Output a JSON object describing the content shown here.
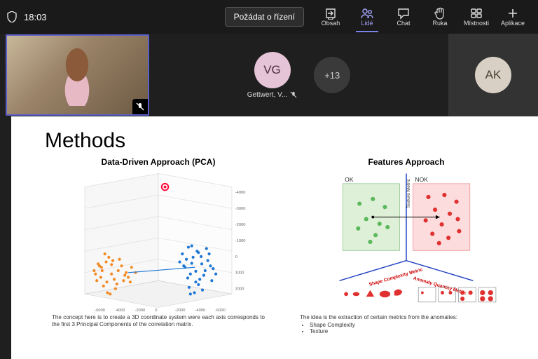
{
  "topbar": {
    "time": "18:03",
    "present_label": "Požádat o řízení",
    "items": [
      {
        "label": "Obsah",
        "icon": "share"
      },
      {
        "label": "Lidé",
        "icon": "people",
        "active": true
      },
      {
        "label": "Chat",
        "icon": "chat"
      },
      {
        "label": "Ruka",
        "icon": "hand"
      },
      {
        "label": "Místnosti",
        "icon": "rooms"
      },
      {
        "label": "Aplikace",
        "icon": "plus"
      }
    ]
  },
  "participants": {
    "main_speaking": true,
    "center": {
      "initials": "VG",
      "name": "Gettwert, V...",
      "muted": true,
      "bg": "#e6c4d8"
    },
    "overflow": {
      "label": "+13"
    },
    "right": {
      "initials": "AK",
      "bg": "#d8d0c4"
    }
  },
  "slide": {
    "title": "Methods",
    "left": {
      "heading": "Data-Driven Approach (PCA)",
      "caption": "The concept here is to create a 3D coordinate system were each axis corresponds to the first 3 Principal Components of the correlation matrix.",
      "chart": {
        "type": "scatter3d",
        "cluster_a_color": "#f28c28",
        "cluster_b_color": "#1f77d4",
        "axis_color": "#888",
        "grid_color": "#ccc",
        "pointer_color": "#ff0033",
        "x_ticks": [
          "-6000",
          "-4000",
          "-2000",
          "0",
          "-2000",
          "-4000",
          "-6000"
        ],
        "y_ticks": [
          "-4000",
          "-3000",
          "-2000",
          "-1000",
          "0",
          "1000",
          "2000"
        ],
        "cluster_a_points": [
          [
            55,
            150
          ],
          [
            62,
            142
          ],
          [
            70,
            160
          ],
          [
            48,
            170
          ],
          [
            80,
            155
          ],
          [
            66,
            135
          ],
          [
            58,
            178
          ],
          [
            74,
            168
          ],
          [
            50,
            145
          ],
          [
            85,
            148
          ],
          [
            64,
            188
          ],
          [
            72,
            140
          ],
          [
            46,
            160
          ],
          [
            90,
            162
          ],
          [
            60,
            130
          ],
          [
            78,
            175
          ],
          [
            54,
            165
          ],
          [
            68,
            190
          ],
          [
            82,
            138
          ],
          [
            56,
            155
          ],
          [
            88,
            170
          ],
          [
            52,
            148
          ],
          [
            76,
            182
          ],
          [
            44,
            155
          ],
          [
            92,
            158
          ],
          [
            63,
            172
          ],
          [
            70,
            146
          ],
          [
            95,
            165
          ],
          [
            100,
            150
          ],
          [
            106,
            158
          ],
          [
            98,
            172
          ]
        ],
        "cluster_b_points": [
          [
            185,
            120
          ],
          [
            192,
            135
          ],
          [
            178,
            148
          ],
          [
            200,
            128
          ],
          [
            188,
            160
          ],
          [
            205,
            145
          ],
          [
            196,
            172
          ],
          [
            182,
            138
          ],
          [
            210,
            155
          ],
          [
            190,
            118
          ],
          [
            202,
            168
          ],
          [
            176,
            130
          ],
          [
            214,
            140
          ],
          [
            186,
            180
          ],
          [
            198,
            126
          ],
          [
            208,
            162
          ],
          [
            180,
            150
          ],
          [
            218,
            148
          ],
          [
            194,
            188
          ],
          [
            204,
            134
          ],
          [
            184,
            166
          ],
          [
            212,
            122
          ],
          [
            200,
            176
          ],
          [
            222,
            152
          ],
          [
            190,
            144
          ],
          [
            206,
            184
          ],
          [
            216,
            130
          ],
          [
            196,
            156
          ],
          [
            226,
            160
          ],
          [
            188,
            190
          ],
          [
            172,
            142
          ],
          [
            220,
            170
          ]
        ]
      }
    },
    "right": {
      "heading": "Features Approach",
      "caption": "The idea is the extraction of certain metrics from the anomalies:",
      "bullets": [
        "Shape Complexity",
        "Texture"
      ],
      "chart": {
        "type": "infographic",
        "ok_label": "OK",
        "nok_label": "NOK",
        "ok_bg": "#dff0d8",
        "ok_border": "#9ccc9c",
        "ok_dot": "#5cb85c",
        "nok_bg": "#fcdcdc",
        "nok_border": "#f0a0a0",
        "nok_dot": "#e03030",
        "axis_color": "#2040c0",
        "y_axis_label": "Texture Metric",
        "x_axis1": "Shape Complexity Metric",
        "x_axis2": "Anomaly Quantity Metric",
        "ok_points": [
          [
            20,
            25
          ],
          [
            40,
            18
          ],
          [
            58,
            30
          ],
          [
            30,
            48
          ],
          [
            50,
            55
          ],
          [
            18,
            62
          ],
          [
            44,
            72
          ],
          [
            62,
            60
          ],
          [
            36,
            82
          ]
        ],
        "nok_points": [
          [
            18,
            15
          ],
          [
            42,
            12
          ],
          [
            60,
            22
          ],
          [
            28,
            34
          ],
          [
            50,
            40
          ],
          [
            14,
            50
          ],
          [
            38,
            56
          ],
          [
            62,
            48
          ],
          [
            24,
            70
          ],
          [
            48,
            76
          ],
          [
            64,
            66
          ],
          [
            34,
            84
          ]
        ]
      }
    }
  },
  "colors": {
    "bg": "#1f1f1f",
    "accent": "#5b5fc7"
  }
}
